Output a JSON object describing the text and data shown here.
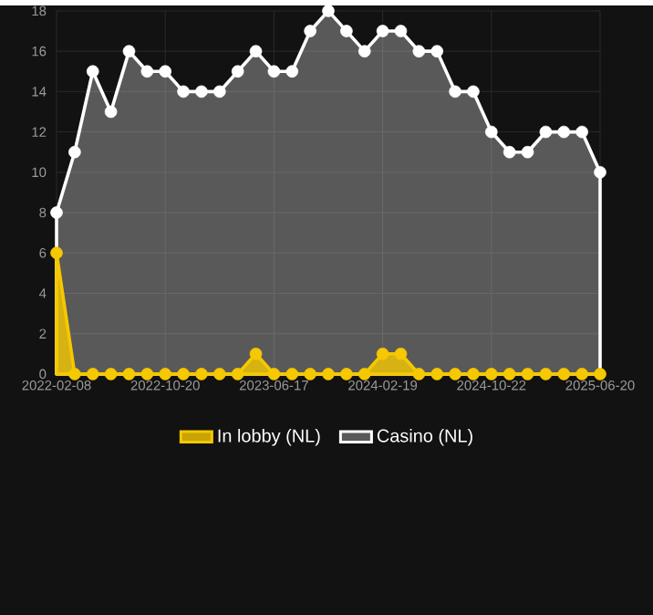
{
  "chart_data": {
    "type": "area",
    "categories": [
      "2022-02-08",
      null,
      null,
      null,
      null,
      null,
      "2022-10-20",
      null,
      null,
      null,
      null,
      null,
      "2023-06-17",
      null,
      null,
      null,
      null,
      null,
      "2024-02-19",
      null,
      null,
      null,
      null,
      null,
      "2024-10-22",
      null,
      null,
      null,
      null,
      null,
      "2025-06-20"
    ],
    "series": [
      {
        "name": "In lobby (NL)",
        "color": "#f5c800",
        "values": [
          6,
          0,
          0,
          0,
          0,
          0,
          0,
          0,
          0,
          0,
          0,
          1,
          0,
          0,
          0,
          0,
          0,
          0,
          1,
          1,
          0,
          0,
          0,
          0,
          0,
          0,
          0,
          0,
          0,
          0,
          0
        ]
      },
      {
        "name": "Casino (NL)",
        "color": "#ffffff",
        "values": [
          8,
          11,
          15,
          13,
          16,
          15,
          15,
          14,
          14,
          14,
          15,
          16,
          15,
          15,
          17,
          18,
          17,
          16,
          17,
          17,
          16,
          16,
          14,
          14,
          12,
          11,
          11,
          12,
          12,
          12,
          10
        ]
      }
    ],
    "ylim": [
      0,
      18
    ],
    "yticks": [
      0,
      2,
      4,
      6,
      8,
      10,
      12,
      14,
      16,
      18
    ],
    "grid": true,
    "legend": "bottom",
    "marker": "circle"
  }
}
